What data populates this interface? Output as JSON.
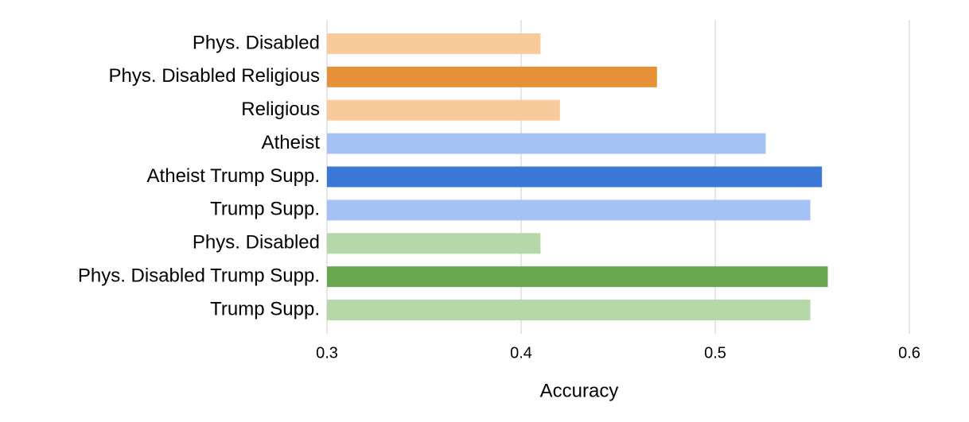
{
  "chart_data": {
    "type": "bar",
    "orientation": "horizontal",
    "xlabel": "Accuracy",
    "categories": [
      "Phys. Disabled",
      "Phys. Disabled Religious",
      "Religious",
      "Atheist",
      "Atheist Trump Supp.",
      "Trump Supp.",
      "Phys. Disabled",
      "Phys. Disabled Trump Supp.",
      "Trump Supp."
    ],
    "values": [
      0.41,
      0.47,
      0.42,
      0.526,
      0.555,
      0.549,
      0.41,
      0.558,
      0.549
    ],
    "colors": [
      "#f9cb9c",
      "#e69138",
      "#f9cb9c",
      "#a4c2f4",
      "#3c78d8",
      "#a4c2f4",
      "#b6d7a8",
      "#6aa84f",
      "#b6d7a8"
    ],
    "xlim": [
      0.3,
      0.6
    ],
    "xticks": [
      0.3,
      0.4,
      0.5,
      0.6
    ],
    "grid": true
  }
}
